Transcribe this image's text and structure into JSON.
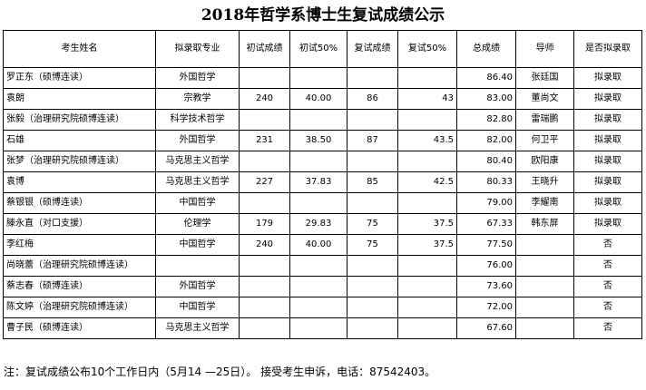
{
  "title": "2018年哲学系博士生复试成绩公示",
  "headers": [
    "考生姓名",
    "拟录取专业",
    "初试成绩",
    "初试50%",
    "复试成绩",
    "复试50%",
    "总成绩",
    "导师",
    "是否拟录取"
  ],
  "rows": [
    {
      "name": "罗正东（硕博连读）",
      "major": "外国哲学",
      "initial": "",
      "initial50": "",
      "retest": "",
      "retest50": "",
      "total": "86.40",
      "advisor": "张廷国",
      "decision": "拟录取"
    },
    {
      "name": "袁朗",
      "major": "宗教学",
      "initial": "240",
      "initial50": "40.00",
      "retest": "86",
      "retest50": "43",
      "total": "83.00",
      "advisor": "董尚文",
      "decision": "拟录取"
    },
    {
      "name": "张毅（治理研究院硕博连读）",
      "major": "科学技术哲学",
      "initial": "",
      "initial50": "",
      "retest": "",
      "retest50": "",
      "total": "82.80",
      "advisor": "雷瑞鹏",
      "decision": "拟录取"
    },
    {
      "name": "石雄",
      "major": "外国哲学",
      "initial": "231",
      "initial50": "38.50",
      "retest": "87",
      "retest50": "43.5",
      "total": "82.00",
      "advisor": "何卫平",
      "decision": "拟录取"
    },
    {
      "name": "张梦（治理研究院硕博连读）",
      "major": "马克思主义哲学",
      "initial": "",
      "initial50": "",
      "retest": "",
      "retest50": "",
      "total": "80.40",
      "advisor": "欧阳康",
      "decision": "拟录取"
    },
    {
      "name": "袁博",
      "major": "马克思主义哲学",
      "initial": "227",
      "initial50": "37.83",
      "retest": "85",
      "retest50": "42.5",
      "total": "80.33",
      "advisor": "王晓升",
      "decision": "拟录取"
    },
    {
      "name": "蔡银银（硕博连读）",
      "major": "中国哲学",
      "initial": "",
      "initial50": "",
      "retest": "",
      "retest50": "",
      "total": "79.00",
      "advisor": "李耀南",
      "decision": "拟录取"
    },
    {
      "name": "滕永直（对口支援）",
      "major": "伦理学",
      "initial": "179",
      "initial50": "29.83",
      "retest": "75",
      "retest50": "37.5",
      "total": "67.33",
      "advisor": "韩东屏",
      "decision": "拟录取"
    },
    {
      "name": "李红梅",
      "major": "中国哲学",
      "initial": "240",
      "initial50": "40.00",
      "retest": "75",
      "retest50": "37.5",
      "total": "77.50",
      "advisor": "",
      "decision": "否"
    },
    {
      "name": "尚晓蕾（治理研究院硕博连读）",
      "major": "",
      "initial": "",
      "initial50": "",
      "retest": "",
      "retest50": "",
      "total": "76.00",
      "advisor": "",
      "decision": "否"
    },
    {
      "name": "蔡志春（硕博连读）",
      "major": "外国哲学",
      "initial": "",
      "initial50": "",
      "retest": "",
      "retest50": "",
      "total": "73.60",
      "advisor": "",
      "decision": "否"
    },
    {
      "name": "陈文婷（治理研究院硕博连读）",
      "major": "中国哲学",
      "initial": "",
      "initial50": "",
      "retest": "",
      "retest50": "",
      "total": "72.00",
      "advisor": "",
      "decision": "否"
    },
    {
      "name": "曹子民（硕博连读）",
      "major": "马克思主义哲学",
      "initial": "",
      "initial50": "",
      "retest": "",
      "retest50": "",
      "total": "67.60",
      "advisor": "",
      "decision": "否"
    }
  ],
  "note": "注：复试成绩公布10个工作日内（5月14 —25日）。 接受考生申诉，电话：87542403。"
}
